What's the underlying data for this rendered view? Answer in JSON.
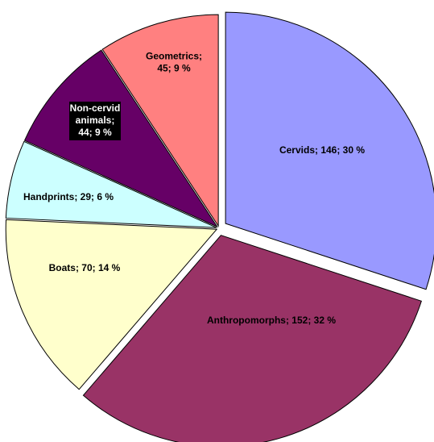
{
  "chart_data": {
    "type": "pie",
    "values": [
      146,
      152,
      70,
      29,
      44,
      45
    ],
    "value_labels": [
      [
        "Cervids; 146; 30 %"
      ],
      [
        "Anthropomorphs; 152; 32 %"
      ],
      [
        "Boats; 70; 14 %"
      ],
      [
        "Handprints; 29; 6 %"
      ],
      [
        "Non-cervid",
        "animals;",
        "44; 9 %"
      ],
      [
        "Geometrics;",
        "45; 9 %"
      ]
    ],
    "colors": [
      "#9999ff",
      "#993366",
      "#ffffcc",
      "#ccffff",
      "#660066",
      "#ff8080"
    ]
  }
}
